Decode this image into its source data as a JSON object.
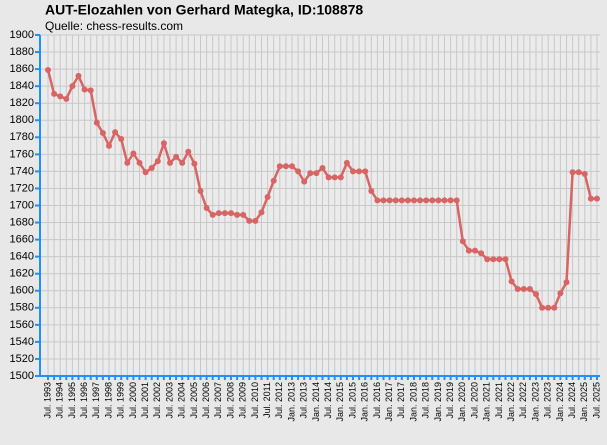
{
  "chart_data": {
    "type": "line",
    "title": "AUT-Elozahlen von Gerhard Mategka, ID:108878",
    "subtitle": "Quelle: chess-results.com",
    "categories": [
      "Jul. 1993",
      null,
      "Jul. 1994",
      null,
      "Jul. 1995",
      null,
      "Jul. 1996",
      null,
      "Jul. 1997",
      null,
      "Jul. 1998",
      null,
      "Jul. 1999",
      null,
      "Jul. 2000",
      null,
      "Jul. 2001",
      null,
      "Jul. 2002",
      null,
      "Jul. 2003",
      null,
      "Jul. 2004",
      null,
      "Jul. 2005",
      null,
      "Jul. 2006",
      null,
      "Jul. 2007",
      null,
      "Jul. 2008",
      null,
      "Jul. 2009",
      null,
      "Jul. 2010",
      null,
      "Jul. 2011",
      null,
      "Jul. 2012",
      null,
      "Jan. 2013",
      null,
      "Jul. 2013",
      null,
      "Jan. 2014",
      null,
      "Jul. 2014",
      null,
      "Jan. 2015",
      null,
      "Jul. 2015",
      null,
      "Jan. 2016",
      null,
      "Jul. 2016",
      null,
      "Jan. 2017",
      null,
      "Jul. 2017",
      null,
      "Jan. 2018",
      null,
      "Jul. 2018",
      null,
      "Jan. 2019",
      null,
      "Jul. 2019",
      null,
      "Jan. 2020",
      null,
      "Jul. 2020",
      null,
      "Jan. 2021",
      null,
      "Jul. 2021",
      null,
      "Jan. 2022",
      null,
      "Jul. 2022",
      null,
      "Jan. 2023",
      null,
      "Jul. 2023",
      null,
      "Jan. 2024",
      null,
      "Jul. 2024",
      null,
      "Jan. 2025",
      null,
      "Jul. 2025"
    ],
    "values": [
      1859,
      1831,
      1828,
      1825,
      1840,
      1852,
      1836,
      1835,
      1797,
      1785,
      1770,
      1786,
      1778,
      1750,
      1761,
      1750,
      1739,
      1744,
      1752,
      1773,
      1750,
      1757,
      1750,
      1763,
      1749,
      1717,
      1697,
      1689,
      1691,
      1691,
      1691,
      1689,
      1689,
      1682,
      1682,
      1692,
      1710,
      1729,
      1746,
      1746,
      1746,
      1740,
      1728,
      1738,
      1738,
      1744,
      1733,
      1733,
      1733,
      1750,
      1740,
      1740,
      1740,
      1717,
      1706,
      1706,
      1706,
      1706,
      1706,
      1706,
      1706,
      1706,
      1706,
      1706,
      1706,
      1706,
      1706,
      1706,
      1658,
      1647,
      1647,
      1644,
      1637,
      1637,
      1637,
      1637,
      1611,
      1602,
      1602,
      1602,
      1596,
      1580,
      1580,
      1580,
      1597,
      1610,
      1739,
      1739,
      1737,
      1708,
      1708
    ],
    "color": "#d96464",
    "axis_color": "#1e90ff",
    "ylim": [
      1500,
      1900
    ],
    "yticks": [
      1500,
      1520,
      1540,
      1560,
      1580,
      1600,
      1620,
      1640,
      1660,
      1680,
      1700,
      1720,
      1740,
      1760,
      1780,
      1800,
      1820,
      1840,
      1860,
      1880,
      1900
    ],
    "grid": true
  }
}
